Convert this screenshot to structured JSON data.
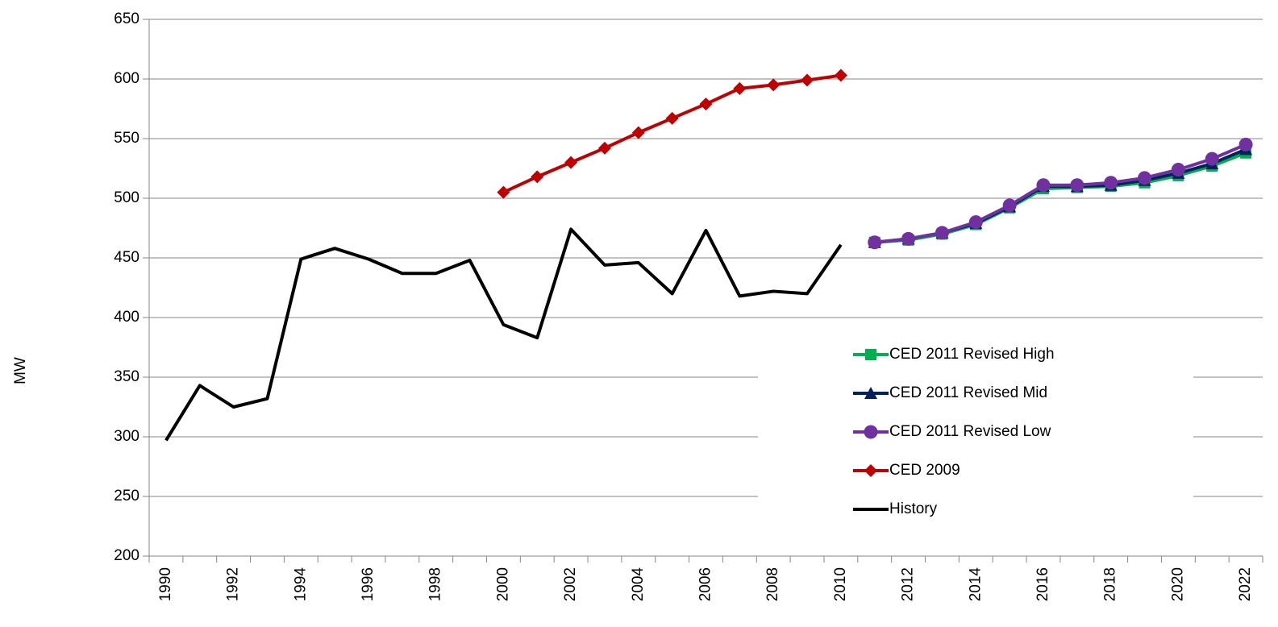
{
  "chart_data": {
    "type": "line",
    "y_label": "MW",
    "categories": [
      "1990",
      null,
      "1992",
      null,
      "1994",
      null,
      "1996",
      null,
      "1998",
      null,
      "2000",
      null,
      "2002",
      null,
      "2004",
      null,
      "2006",
      null,
      "2008",
      null,
      "2010",
      null,
      "2012",
      null,
      "2014",
      null,
      "2016",
      null,
      "2018",
      null,
      "2020",
      null,
      "2022"
    ],
    "ylim": [
      200,
      650
    ],
    "yticks": [
      200,
      250,
      300,
      350,
      400,
      450,
      500,
      550,
      600,
      650
    ],
    "grid": true,
    "series": [
      {
        "name": "CED 2011 Revised High",
        "color": "#00b050",
        "marker": "square",
        "values": [
          null,
          null,
          null,
          null,
          null,
          null,
          null,
          null,
          null,
          null,
          null,
          null,
          null,
          null,
          null,
          null,
          null,
          null,
          null,
          null,
          null,
          463,
          465,
          470,
          478,
          492,
          508,
          509,
          510,
          513,
          519,
          527,
          538
        ]
      },
      {
        "name": "CED 2011 Revised Mid",
        "color": "#002060",
        "marker": "triangle",
        "values": [
          null,
          null,
          null,
          null,
          null,
          null,
          null,
          null,
          null,
          null,
          null,
          null,
          null,
          null,
          null,
          null,
          null,
          null,
          null,
          null,
          null,
          463,
          466,
          471,
          479,
          493,
          510,
          510,
          511,
          515,
          521,
          529,
          541
        ]
      },
      {
        "name": "CED 2011 Revised Low",
        "color": "#7030a0",
        "marker": "circle",
        "values": [
          null,
          null,
          null,
          null,
          null,
          null,
          null,
          null,
          null,
          null,
          null,
          null,
          null,
          null,
          null,
          null,
          null,
          null,
          null,
          null,
          null,
          463,
          466,
          471,
          480,
          494,
          511,
          511,
          513,
          517,
          524,
          533,
          545
        ]
      },
      {
        "name": "CED 2009",
        "color": "#c00000",
        "marker": "diamond",
        "values": [
          null,
          null,
          null,
          null,
          null,
          null,
          null,
          null,
          null,
          null,
          505,
          518,
          530,
          542,
          555,
          567,
          579,
          592,
          595,
          599,
          603,
          null,
          null,
          null,
          null,
          null,
          null,
          null,
          null,
          null,
          null,
          null,
          null
        ]
      },
      {
        "name": "History",
        "color": "#000000",
        "marker": "none",
        "values": [
          297,
          343,
          325,
          332,
          449,
          458,
          449,
          437,
          437,
          448,
          394,
          383,
          474,
          444,
          446,
          420,
          473,
          418,
          422,
          420,
          461,
          null,
          null,
          null,
          null,
          null,
          null,
          null,
          null,
          null,
          null,
          null,
          null
        ]
      }
    ]
  }
}
